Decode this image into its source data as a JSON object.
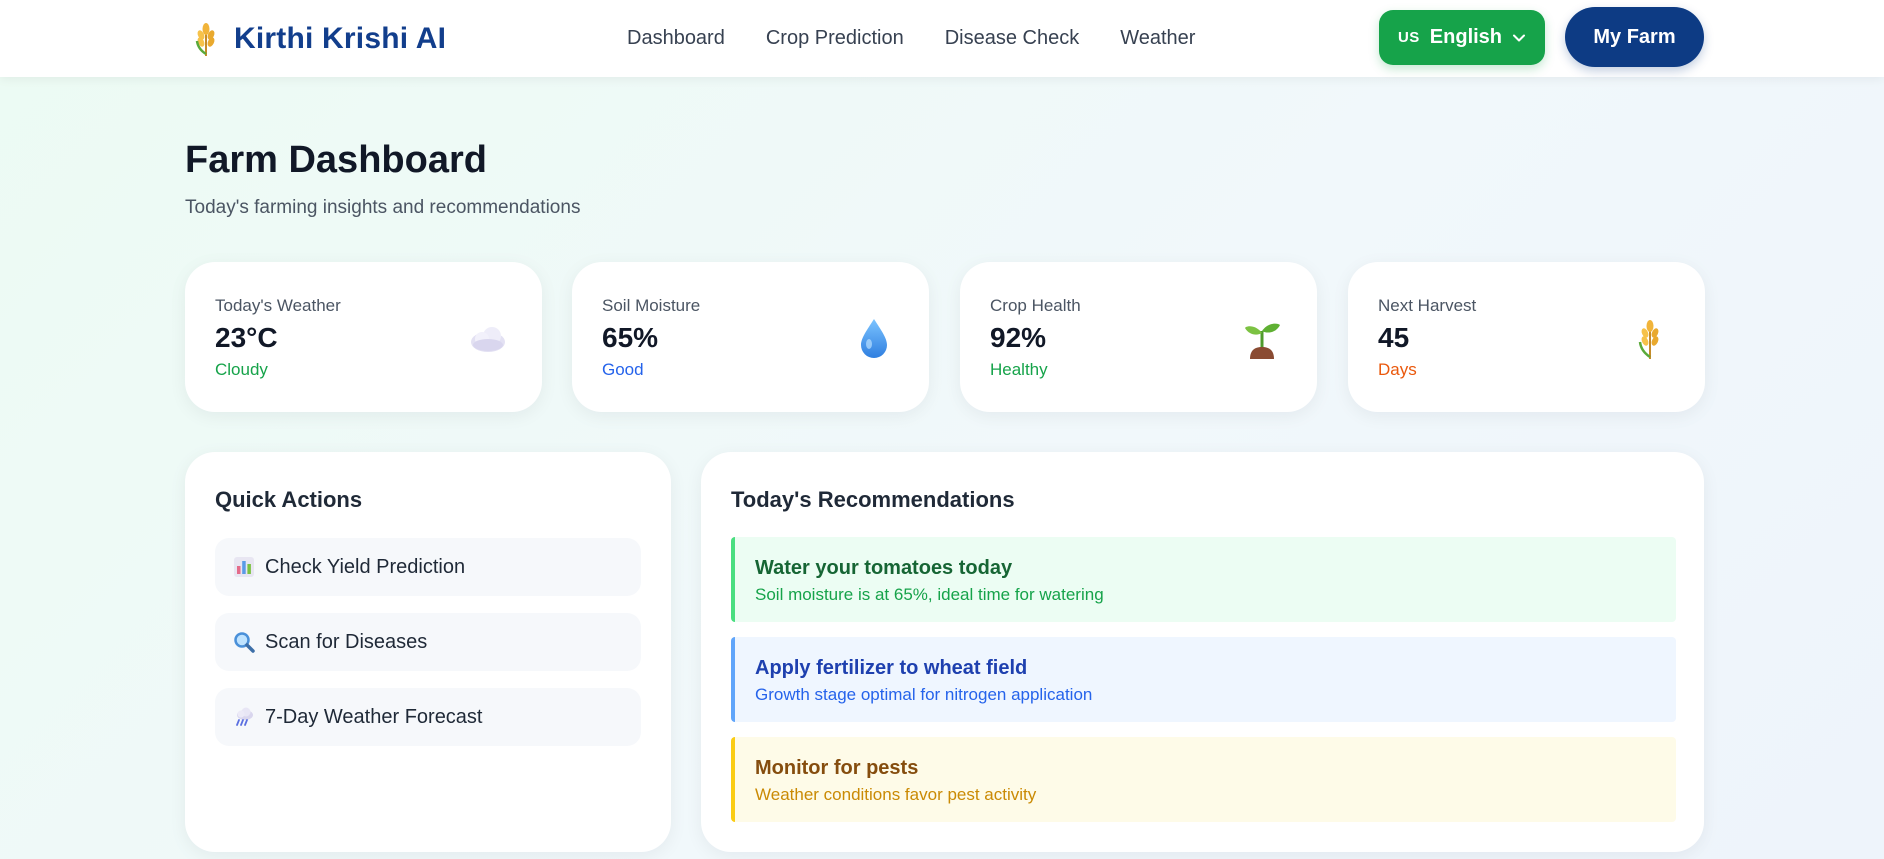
{
  "brand": {
    "name": "Kirthi Krishi AI",
    "icon": "wheat-icon"
  },
  "nav": {
    "items": [
      {
        "label": "Dashboard"
      },
      {
        "label": "Crop Prediction"
      },
      {
        "label": "Disease Check"
      },
      {
        "label": "Weather"
      }
    ]
  },
  "language": {
    "flag": "US",
    "label": "English"
  },
  "farm_button": {
    "label": "My Farm"
  },
  "header": {
    "title": "Farm Dashboard",
    "subtitle": "Today's farming insights and recommendations"
  },
  "stats": [
    {
      "label": "Today's Weather",
      "value": "23°C",
      "sub": "Cloudy",
      "sub_color": "#16a34a",
      "icon": "cloud-icon"
    },
    {
      "label": "Soil Moisture",
      "value": "65%",
      "sub": "Good",
      "sub_color": "#2563eb",
      "icon": "water-drop-icon"
    },
    {
      "label": "Crop Health",
      "value": "92%",
      "sub": "Healthy",
      "sub_color": "#16a34a",
      "icon": "seedling-icon"
    },
    {
      "label": "Next Harvest",
      "value": "45",
      "sub": "Days",
      "sub_color": "#ea580c",
      "icon": "wheat-icon"
    }
  ],
  "quick_actions": {
    "title": "Quick Actions",
    "items": [
      {
        "label": "Check Yield Prediction",
        "icon": "bar-chart-icon"
      },
      {
        "label": "Scan for Diseases",
        "icon": "magnifier-icon"
      },
      {
        "label": "7-Day Weather Forecast",
        "icon": "rain-cloud-icon"
      }
    ]
  },
  "recommendations": {
    "title": "Today's Recommendations",
    "items": [
      {
        "title": "Water your tomatoes today",
        "desc": "Soil moisture is at 65%, ideal time for watering",
        "bg": "#ecfdf3",
        "border": "#4ade80",
        "title_color": "#166534",
        "desc_color": "#16a34a"
      },
      {
        "title": "Apply fertilizer to wheat field",
        "desc": "Growth stage optimal for nitrogen application",
        "bg": "#eff6ff",
        "border": "#60a5fa",
        "title_color": "#1e40af",
        "desc_color": "#2563eb"
      },
      {
        "title": "Monitor for pests",
        "desc": "Weather conditions favor pest activity",
        "bg": "#fefbe8",
        "border": "#facc15",
        "title_color": "#854d0e",
        "desc_color": "#ca8a04"
      }
    ]
  }
}
